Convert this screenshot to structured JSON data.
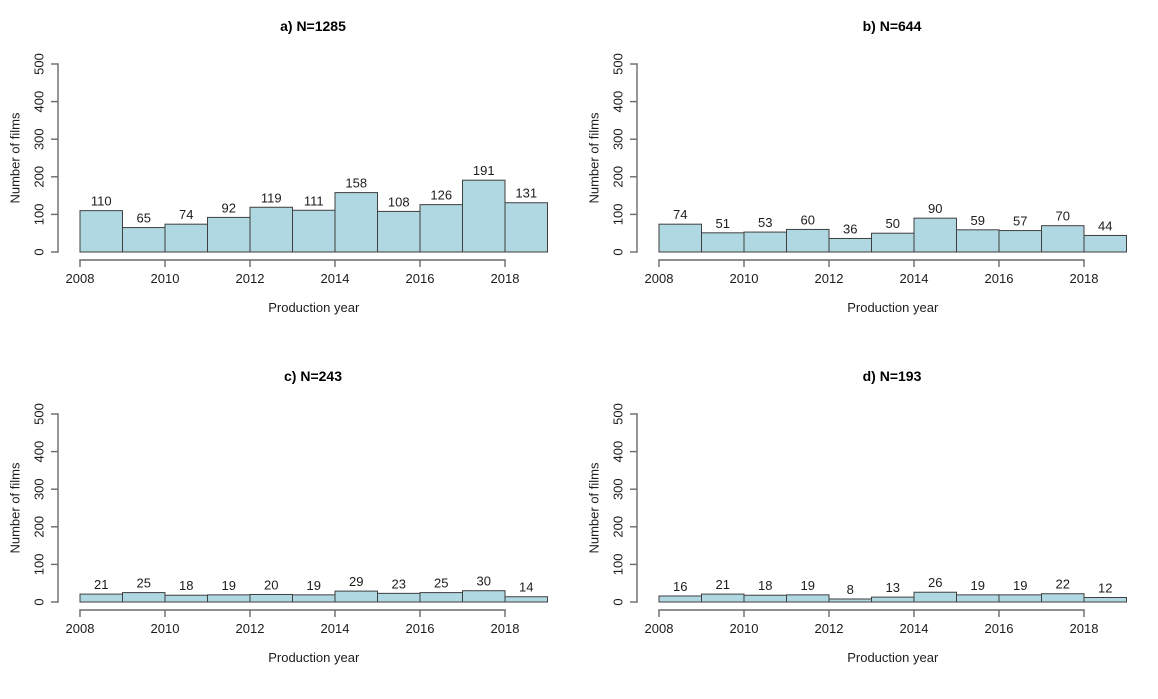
{
  "figure": {
    "background": "#ffffff",
    "text_color": "#1c1c1c",
    "axis_color": "#6a6a6a",
    "bar_fill": "#B0D8E2",
    "bar_border": "#3f3f3f"
  },
  "chart_data": [
    {
      "id": "a",
      "type": "bar",
      "title": "a) N=1285",
      "n_total": 1285,
      "xlabel": "Production year",
      "ylabel": "Number of films",
      "categories": [
        2008,
        2009,
        2010,
        2011,
        2012,
        2013,
        2014,
        2015,
        2016,
        2017,
        2018
      ],
      "values": [
        110,
        65,
        74,
        92,
        119,
        111,
        158,
        108,
        126,
        191,
        131
      ],
      "ylim": [
        0,
        500
      ],
      "yticks": [
        0,
        100,
        200,
        300,
        400,
        500
      ],
      "xticks": [
        2008,
        2010,
        2012,
        2014,
        2016,
        2018
      ],
      "grid": false,
      "legend": false
    },
    {
      "id": "b",
      "type": "bar",
      "title": "b) N=644",
      "n_total": 644,
      "xlabel": "Production year",
      "ylabel": "Number of films",
      "categories": [
        2008,
        2009,
        2010,
        2011,
        2012,
        2013,
        2014,
        2015,
        2016,
        2017,
        2018
      ],
      "values": [
        74,
        51,
        53,
        60,
        36,
        50,
        90,
        59,
        57,
        70,
        44
      ],
      "ylim": [
        0,
        500
      ],
      "yticks": [
        0,
        100,
        200,
        300,
        400,
        500
      ],
      "xticks": [
        2008,
        2010,
        2012,
        2014,
        2016,
        2018
      ],
      "grid": false,
      "legend": false
    },
    {
      "id": "c",
      "type": "bar",
      "title": "c) N=243",
      "n_total": 243,
      "xlabel": "Production year",
      "ylabel": "Number of films",
      "categories": [
        2008,
        2009,
        2010,
        2011,
        2012,
        2013,
        2014,
        2015,
        2016,
        2017,
        2018
      ],
      "values": [
        21,
        25,
        18,
        19,
        20,
        19,
        29,
        23,
        25,
        30,
        14
      ],
      "ylim": [
        0,
        500
      ],
      "yticks": [
        0,
        100,
        200,
        300,
        400,
        500
      ],
      "xticks": [
        2008,
        2010,
        2012,
        2014,
        2016,
        2018
      ],
      "grid": false,
      "legend": false
    },
    {
      "id": "d",
      "type": "bar",
      "title": "d) N=193",
      "n_total": 193,
      "xlabel": "Production year",
      "ylabel": "Number of films",
      "categories": [
        2008,
        2009,
        2010,
        2011,
        2012,
        2013,
        2014,
        2015,
        2016,
        2017,
        2018
      ],
      "values": [
        16,
        21,
        18,
        19,
        8,
        13,
        26,
        19,
        19,
        22,
        12
      ],
      "ylim": [
        0,
        500
      ],
      "yticks": [
        0,
        100,
        200,
        300,
        400,
        500
      ],
      "xticks": [
        2008,
        2010,
        2012,
        2014,
        2016,
        2018
      ],
      "grid": false,
      "legend": false
    }
  ]
}
